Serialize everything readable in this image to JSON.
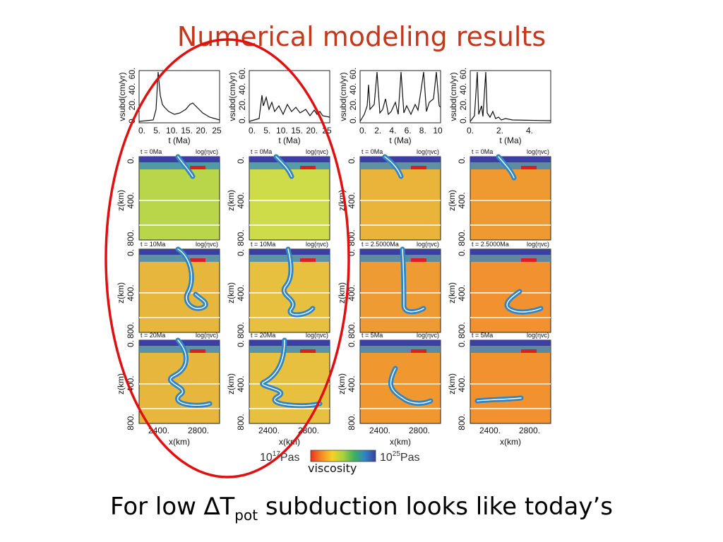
{
  "slide": {
    "title": "Numerical modeling results",
    "caption_prefix": "For low ",
    "caption_symbol": "∆T",
    "caption_sub": "pot",
    "caption_suffix": " subduction looks like today’s",
    "viscosity_label": "viscosity"
  },
  "colors": {
    "title": "#c4391c",
    "highlight_ellipse": "#e01010",
    "colorbar": [
      "#e8321c",
      "#f58a24",
      "#f5d22a",
      "#a9d23c",
      "#3fb15a",
      "#2e86c7",
      "#3b3f9e"
    ]
  },
  "velocity_plots": [
    {
      "ylabel": "vsubd(cm/yr)",
      "yticks": [
        "0.",
        "20.",
        "40.",
        "60."
      ],
      "xticks": [
        "0.",
        "5.",
        "10.",
        "15.",
        "20.",
        "25"
      ],
      "xlabel": "t (Ma)"
    },
    {
      "ylabel": "vsubd(cm/yr)",
      "yticks": [
        "0.",
        "20.",
        "40.",
        "60."
      ],
      "xticks": [
        "0.",
        "5.",
        "10.",
        "15.",
        "20.",
        "25"
      ],
      "xlabel": "t (Ma)"
    },
    {
      "ylabel": "vsubd(cm/yr)",
      "yticks": [
        "0.",
        "20.",
        "40.",
        "60."
      ],
      "xticks": [
        "0.",
        "2.",
        "4.",
        "6.",
        "8.",
        "10"
      ],
      "xlabel": "t (Ma)"
    },
    {
      "ylabel": "vsubd(cm/yr)",
      "yticks": [
        "0.",
        "20.",
        "40.",
        "60."
      ],
      "xticks": [
        "0.",
        "2.",
        "4."
      ],
      "xlabel": "t (Ma)"
    }
  ],
  "panel_rows": [
    [
      "t = 0Ma",
      "t = 0Ma",
      "t = 0Ma",
      "t = 0Ma"
    ],
    [
      "t = 10Ma",
      "t = 10Ma",
      "t = 2.5000Ma",
      "t = 2.5000Ma"
    ],
    [
      "t = 20Ma",
      "t = 20Ma",
      "t = 5Ma",
      "t = 5Ma"
    ]
  ],
  "panel_field_label": "log(ηvc)",
  "z_axis": {
    "label": "z(km)",
    "ticks": [
      "0.",
      "400.",
      "800."
    ],
    "bottom_tick": "800."
  },
  "x_axis": {
    "label": "x(km)",
    "ticks": [
      "2400.",
      "2800."
    ]
  },
  "colorbar": {
    "min_base": "10",
    "min_exp": "17",
    "min_unit": "Pas",
    "max_base": "10",
    "max_exp": "25",
    "max_unit": "Pas"
  }
}
